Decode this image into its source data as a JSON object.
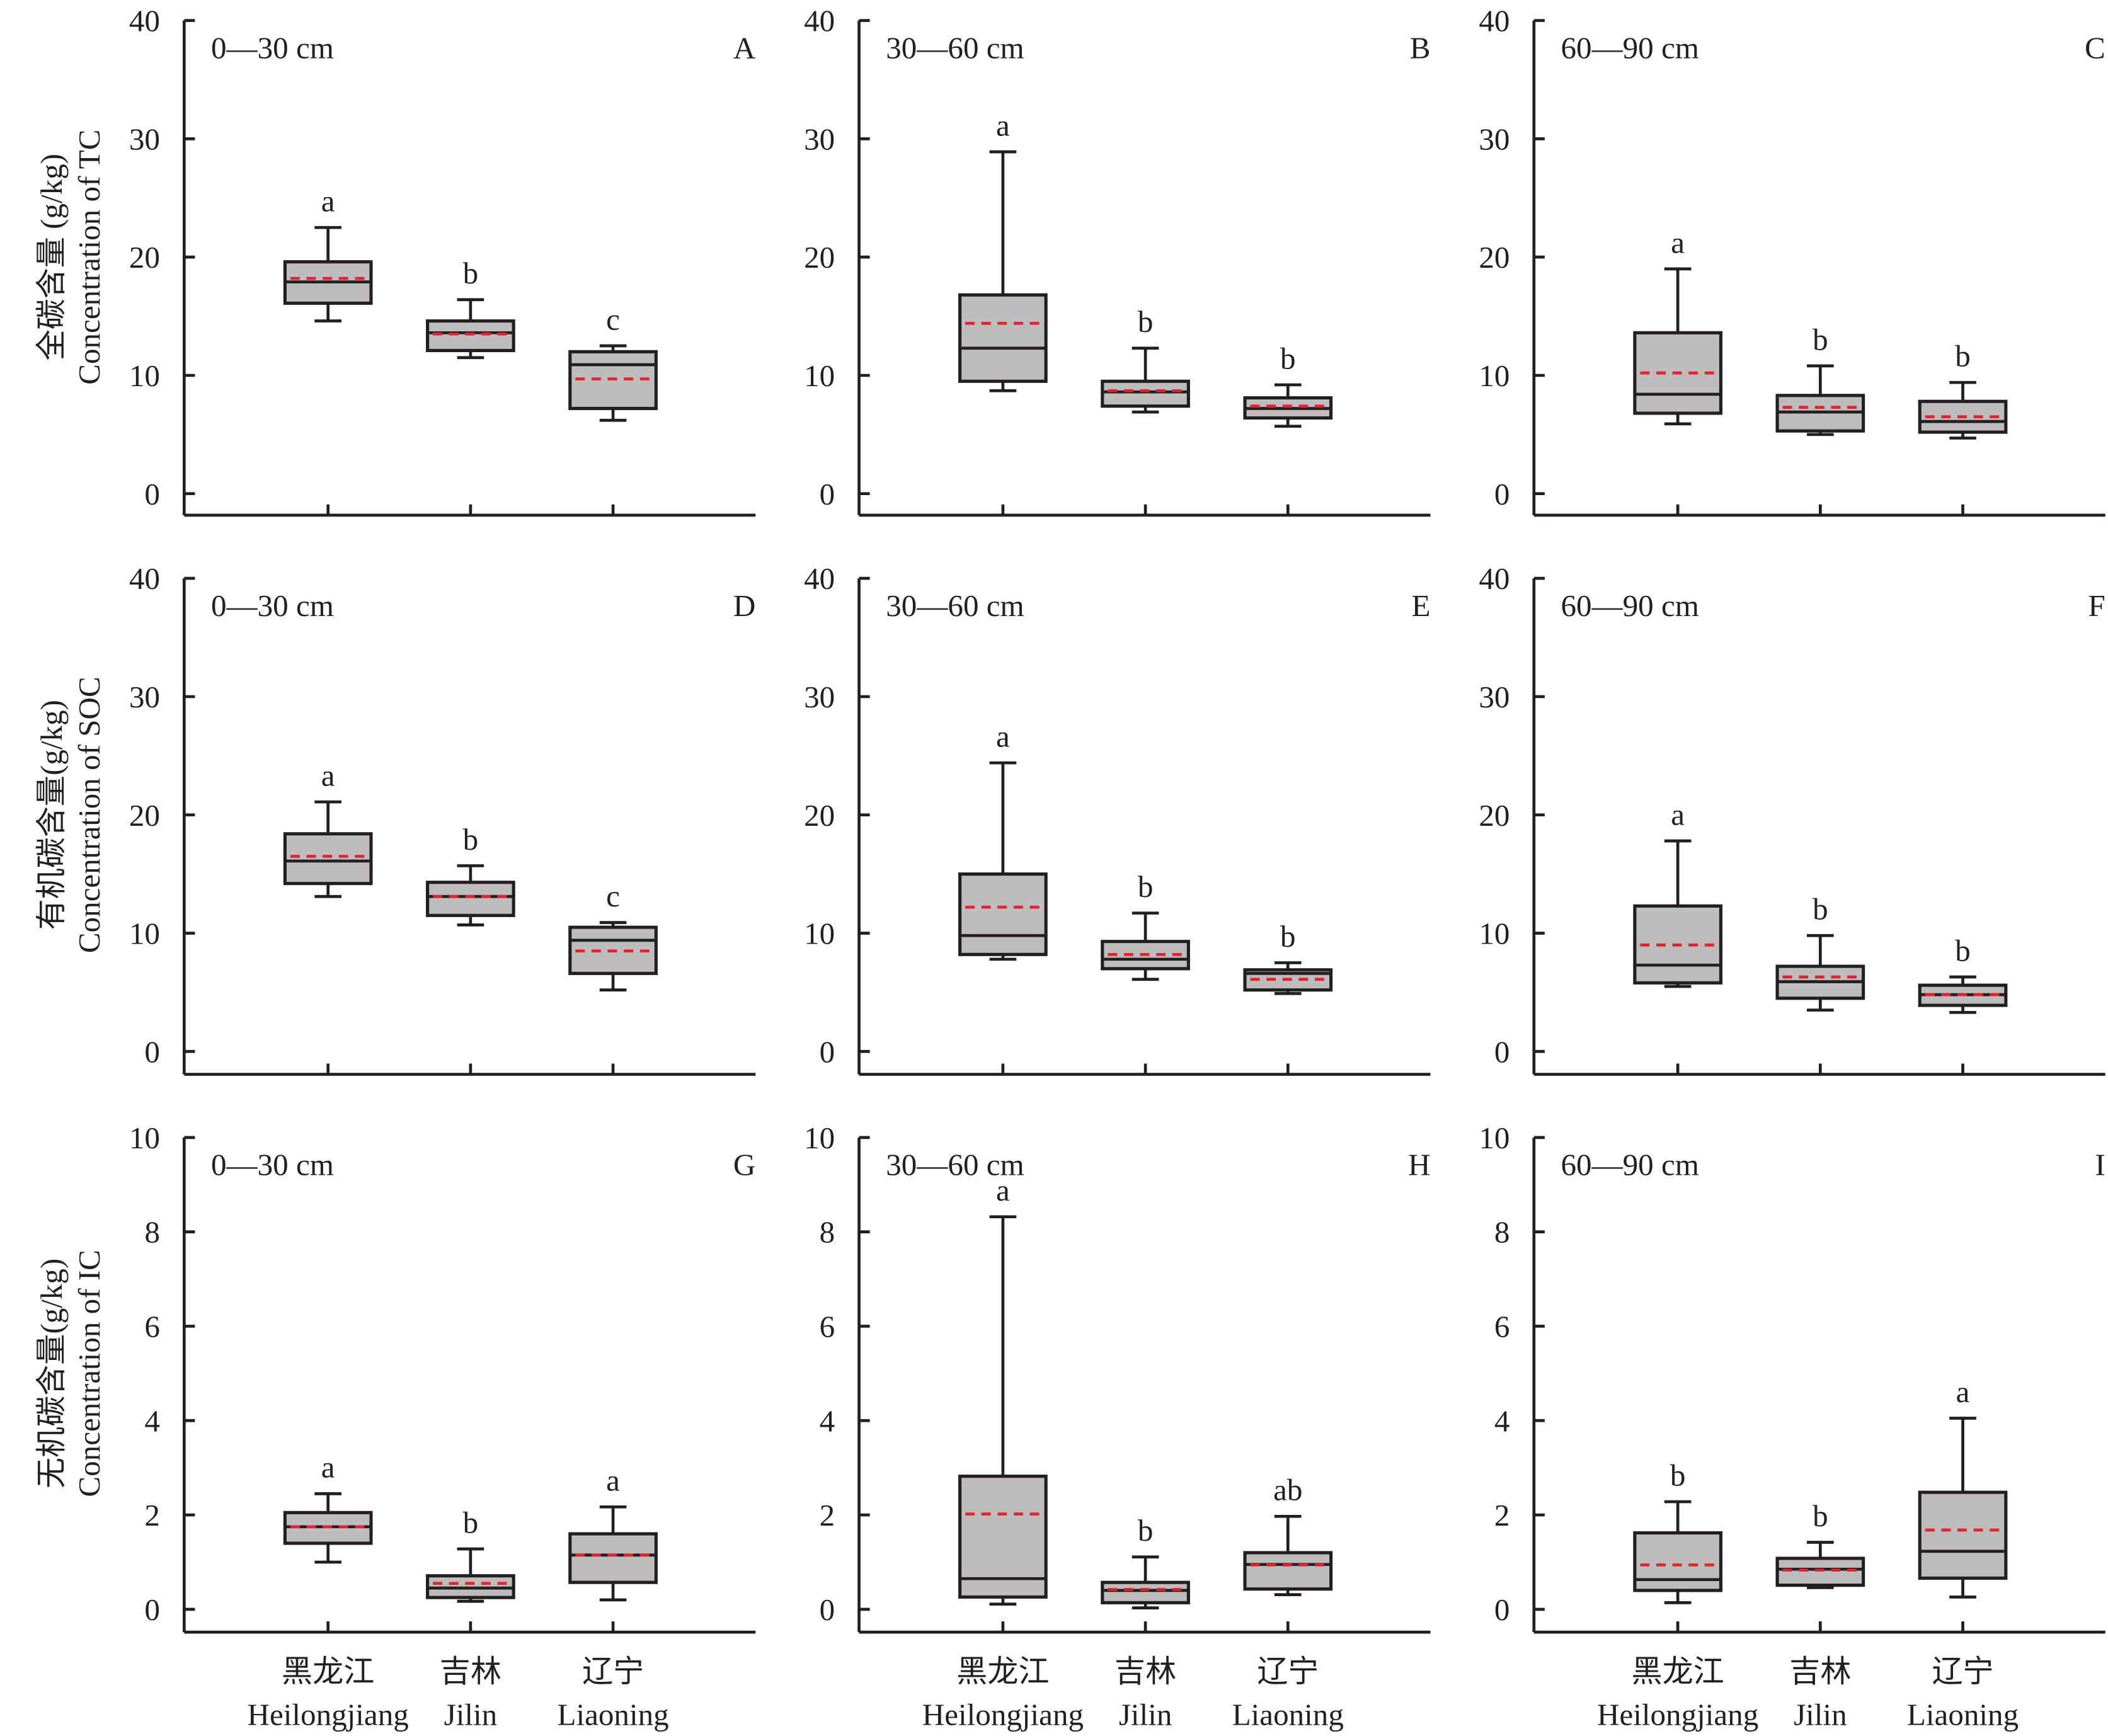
{
  "chart_data": {
    "type": "box",
    "colors": {
      "box_fill": "#bdbdbd",
      "outline": "#231f20",
      "mean_line": "#e8202a"
    },
    "line_styles": {
      "median": "solid black",
      "mean": "dashed red"
    },
    "categories": [
      {
        "zh": "黑龙江",
        "en": "Heilongjiang"
      },
      {
        "zh": "吉林",
        "en": "Jilin"
      },
      {
        "zh": "辽宁",
        "en": "Liaoning"
      }
    ],
    "rows": [
      {
        "ylabel_zh": "全碳含量 (g/kg)",
        "ylabel_en": "Concentration of TC",
        "ylim": [
          0,
          40
        ],
        "yticks": [
          0,
          10,
          20,
          30,
          40
        ]
      },
      {
        "ylabel_zh": "有机碳含量(g/kg)",
        "ylabel_en": "Concentration of SOC",
        "ylim": [
          0,
          40
        ],
        "yticks": [
          0,
          10,
          20,
          30,
          40
        ]
      },
      {
        "ylabel_zh": "无机碳含量(g/kg)",
        "ylabel_en": "Concentration of IC",
        "ylim": [
          0,
          10
        ],
        "yticks": [
          0,
          2,
          4,
          6,
          8,
          10
        ]
      }
    ],
    "panels": [
      {
        "id": "A",
        "depth": "0—30 cm",
        "row": 0,
        "col": 0,
        "boxes": [
          {
            "min": 14.6,
            "q1": 16.1,
            "median": 17.9,
            "q3": 19.6,
            "max": 22.5,
            "mean": 18.2,
            "letter": "a"
          },
          {
            "min": 11.5,
            "q1": 12.1,
            "median": 13.6,
            "q3": 14.6,
            "max": 16.4,
            "mean": 13.5,
            "letter": "b"
          },
          {
            "min": 6.2,
            "q1": 7.2,
            "median": 10.9,
            "q3": 12.0,
            "max": 12.5,
            "mean": 9.7,
            "letter": "c"
          }
        ]
      },
      {
        "id": "B",
        "depth": "30—60 cm",
        "row": 0,
        "col": 1,
        "boxes": [
          {
            "min": 8.7,
            "q1": 9.5,
            "median": 12.3,
            "q3": 16.8,
            "max": 28.9,
            "mean": 14.4,
            "letter": "a"
          },
          {
            "min": 6.9,
            "q1": 7.4,
            "median": 8.6,
            "q3": 9.5,
            "max": 12.3,
            "mean": 8.7,
            "letter": "b"
          },
          {
            "min": 5.7,
            "q1": 6.4,
            "median": 7.2,
            "q3": 8.1,
            "max": 9.2,
            "mean": 7.4,
            "letter": "b"
          }
        ]
      },
      {
        "id": "C",
        "depth": "60—90 cm",
        "row": 0,
        "col": 2,
        "boxes": [
          {
            "min": 5.9,
            "q1": 6.8,
            "median": 8.4,
            "q3": 13.6,
            "max": 19.0,
            "mean": 10.2,
            "letter": "a"
          },
          {
            "min": 5.0,
            "q1": 5.3,
            "median": 6.9,
            "q3": 8.3,
            "max": 10.8,
            "mean": 7.3,
            "letter": "b"
          },
          {
            "min": 4.7,
            "q1": 5.2,
            "median": 6.1,
            "q3": 7.8,
            "max": 9.4,
            "mean": 6.5,
            "letter": "b"
          }
        ]
      },
      {
        "id": "D",
        "depth": "0—30 cm",
        "row": 1,
        "col": 0,
        "boxes": [
          {
            "min": 13.1,
            "q1": 14.2,
            "median": 16.1,
            "q3": 18.4,
            "max": 21.1,
            "mean": 16.5,
            "letter": "a"
          },
          {
            "min": 10.7,
            "q1": 11.5,
            "median": 13.1,
            "q3": 14.3,
            "max": 15.7,
            "mean": 13.1,
            "letter": "b"
          },
          {
            "min": 5.2,
            "q1": 6.6,
            "median": 9.4,
            "q3": 10.5,
            "max": 10.9,
            "mean": 8.5,
            "letter": "c"
          }
        ]
      },
      {
        "id": "E",
        "depth": "30—60 cm",
        "row": 1,
        "col": 1,
        "boxes": [
          {
            "min": 7.8,
            "q1": 8.2,
            "median": 9.8,
            "q3": 15.0,
            "max": 24.4,
            "mean": 12.2,
            "letter": "a"
          },
          {
            "min": 6.1,
            "q1": 7.0,
            "median": 7.8,
            "q3": 9.3,
            "max": 11.7,
            "mean": 8.2,
            "letter": "b"
          },
          {
            "min": 4.9,
            "q1": 5.2,
            "median": 6.6,
            "q3": 6.9,
            "max": 7.5,
            "mean": 6.1,
            "letter": "b"
          }
        ]
      },
      {
        "id": "F",
        "depth": "60—90 cm",
        "row": 1,
        "col": 2,
        "boxes": [
          {
            "min": 5.5,
            "q1": 5.8,
            "median": 7.3,
            "q3": 12.3,
            "max": 17.8,
            "mean": 9.0,
            "letter": "a"
          },
          {
            "min": 3.5,
            "q1": 4.5,
            "median": 5.9,
            "q3": 7.2,
            "max": 9.8,
            "mean": 6.3,
            "letter": "b"
          },
          {
            "min": 3.3,
            "q1": 3.9,
            "median": 4.8,
            "q3": 5.6,
            "max": 6.3,
            "mean": 4.8,
            "letter": "b"
          }
        ]
      },
      {
        "id": "G",
        "depth": "0—30 cm",
        "row": 2,
        "col": 0,
        "boxes": [
          {
            "min": 1.0,
            "q1": 1.4,
            "median": 1.75,
            "q3": 2.05,
            "max": 2.45,
            "mean": 1.75,
            "letter": "a"
          },
          {
            "min": 0.17,
            "q1": 0.25,
            "median": 0.45,
            "q3": 0.71,
            "max": 1.28,
            "mean": 0.55,
            "letter": "b"
          },
          {
            "min": 0.2,
            "q1": 0.57,
            "median": 1.15,
            "q3": 1.6,
            "max": 2.17,
            "mean": 1.15,
            "letter": "a"
          }
        ]
      },
      {
        "id": "H",
        "depth": "30—60 cm",
        "row": 2,
        "col": 1,
        "boxes": [
          {
            "min": 0.11,
            "q1": 0.26,
            "median": 0.65,
            "q3": 2.82,
            "max": 8.32,
            "mean": 2.02,
            "letter": "a"
          },
          {
            "min": 0.03,
            "q1": 0.14,
            "median": 0.4,
            "q3": 0.57,
            "max": 1.11,
            "mean": 0.42,
            "letter": "b"
          },
          {
            "min": 0.31,
            "q1": 0.43,
            "median": 0.95,
            "q3": 1.2,
            "max": 1.97,
            "mean": 0.94,
            "letter": "ab"
          }
        ]
      },
      {
        "id": "I",
        "depth": "60—90 cm",
        "row": 2,
        "col": 2,
        "boxes": [
          {
            "min": 0.14,
            "q1": 0.4,
            "median": 0.63,
            "q3": 1.62,
            "max": 2.28,
            "mean": 0.94,
            "letter": "b"
          },
          {
            "min": 0.46,
            "q1": 0.51,
            "median": 0.85,
            "q3": 1.08,
            "max": 1.42,
            "mean": 0.83,
            "letter": "b"
          },
          {
            "min": 0.26,
            "q1": 0.66,
            "median": 1.23,
            "q3": 2.48,
            "max": 4.05,
            "mean": 1.68,
            "letter": "a"
          }
        ]
      }
    ]
  }
}
